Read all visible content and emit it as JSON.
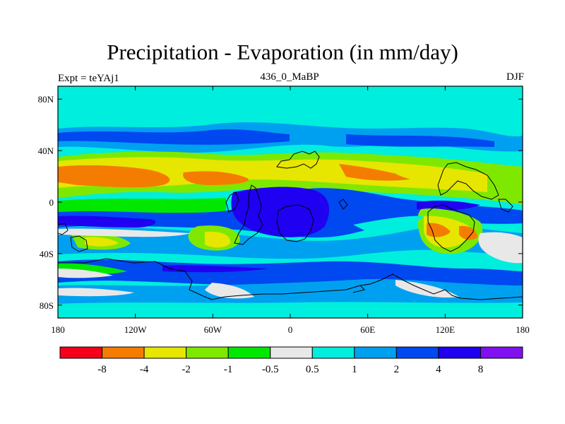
{
  "title": "Precipitation - Evaporation (in mm/day)",
  "left_label": "Expt = teYAj1",
  "center_label": "436_0_MaBP",
  "right_label": "DJF",
  "map": {
    "lon_range": [
      -180,
      180
    ],
    "lat_range": [
      -90,
      90
    ],
    "x_ticks": [
      {
        "lon": -180,
        "label": "180"
      },
      {
        "lon": -120,
        "label": "120W"
      },
      {
        "lon": -60,
        "label": "60W"
      },
      {
        "lon": 0,
        "label": "0"
      },
      {
        "lon": 60,
        "label": "60E"
      },
      {
        "lon": 120,
        "label": "120E"
      },
      {
        "lon": 180,
        "label": "180"
      }
    ],
    "y_ticks": [
      {
        "lat": 80,
        "label": "80N"
      },
      {
        "lat": 40,
        "label": "40N"
      },
      {
        "lat": 0,
        "label": "0"
      },
      {
        "lat": -40,
        "label": "40S"
      },
      {
        "lat": -80,
        "label": "80S"
      }
    ]
  },
  "colorbar": {
    "colors": [
      "#f5001c",
      "#f47c00",
      "#e6e600",
      "#7fe800",
      "#00e800",
      "#e8e8e8",
      "#00eedd",
      "#00a0f0",
      "#0048f0",
      "#2000f0",
      "#8010f0"
    ],
    "tick_labels": [
      "-8",
      "-4",
      "-2",
      "-1",
      "-0.5",
      "0.5",
      "1",
      "2",
      "4",
      "8"
    ]
  }
}
